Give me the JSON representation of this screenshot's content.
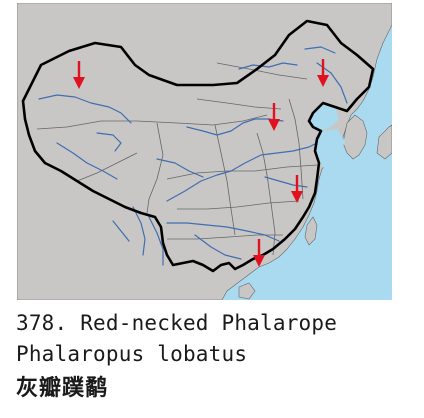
{
  "map": {
    "colors": {
      "land": "#c9c6c6",
      "sea": "#a9daf0",
      "national_border": "#000000",
      "province_border": "#666666",
      "river": "#3f6fb0",
      "marker": "#e0121f"
    },
    "markers": [
      {
        "id": "xinjiang",
        "icon": "red-arrow-down"
      },
      {
        "id": "heilongjiang",
        "icon": "red-arrow-down"
      },
      {
        "id": "beijing-tianjin",
        "icon": "red-arrow-down"
      },
      {
        "id": "jiangsu-shanghai",
        "icon": "red-arrow-down"
      },
      {
        "id": "guangdong",
        "icon": "red-arrow-down"
      }
    ]
  },
  "caption": {
    "number": "378.",
    "common_name": "Red-necked Phalarope",
    "scientific_name": "Phalaropus lobatus",
    "chinese_name": "灰瓣蹼鹬"
  }
}
